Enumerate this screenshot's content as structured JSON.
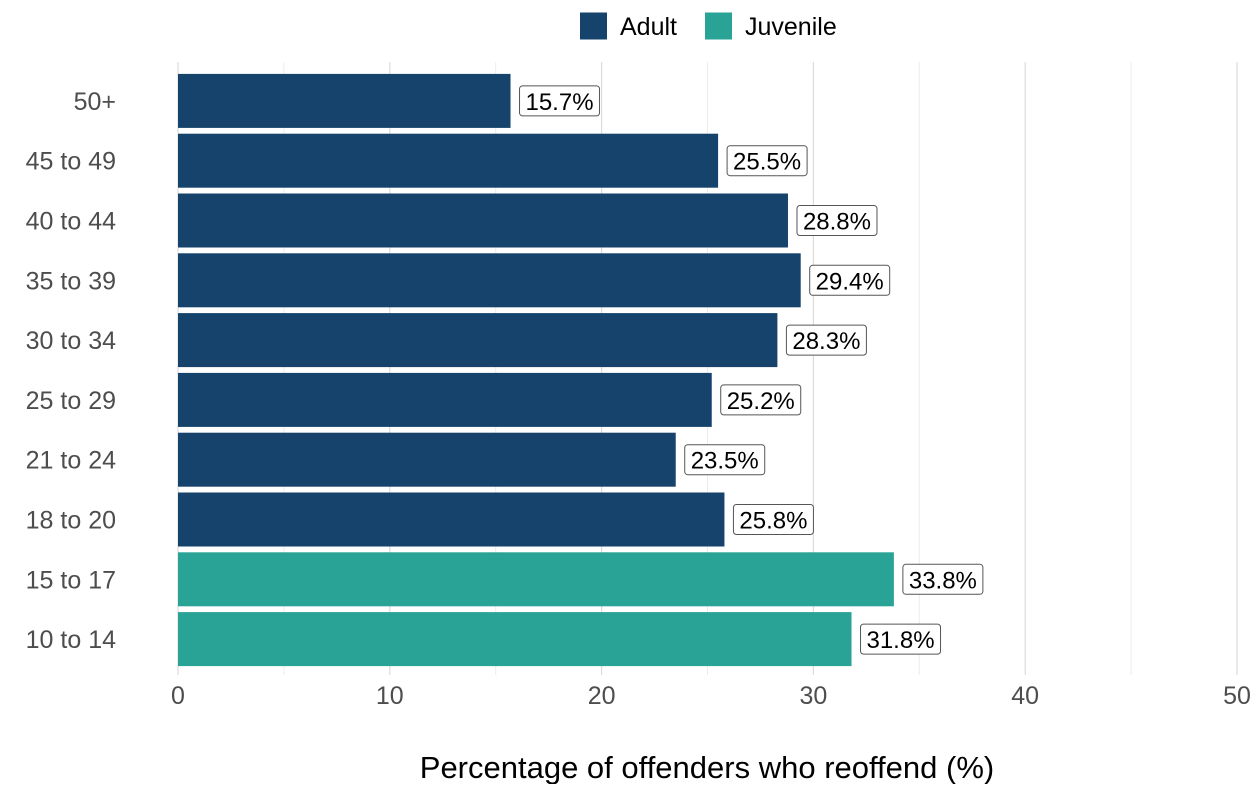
{
  "chart_data": {
    "type": "bar",
    "orientation": "horizontal",
    "title": "",
    "xlabel": "Percentage of offenders who reoffend (%)",
    "ylabel": "",
    "xlim": [
      0,
      50
    ],
    "x_ticks": [
      0,
      10,
      20,
      30,
      40,
      50
    ],
    "grid": "vertical",
    "legend_position": "top",
    "legend": [
      {
        "name": "Adult",
        "color": "#15436b"
      },
      {
        "name": "Juvenile",
        "color": "#2aa397"
      }
    ],
    "categories": [
      "50+",
      "45 to 49",
      "40 to 44",
      "35 to 39",
      "30 to 34",
      "25 to 29",
      "21 to 24",
      "18 to 20",
      "15 to 17",
      "10 to 14"
    ],
    "values": [
      15.7,
      25.5,
      28.8,
      29.4,
      28.3,
      25.2,
      23.5,
      25.8,
      33.8,
      31.8
    ],
    "groups": [
      "Adult",
      "Adult",
      "Adult",
      "Adult",
      "Adult",
      "Adult",
      "Adult",
      "Adult",
      "Juvenile",
      "Juvenile"
    ],
    "data_labels": [
      "15.7%",
      "25.5%",
      "28.8%",
      "29.4%",
      "28.3%",
      "25.2%",
      "23.5%",
      "25.8%",
      "33.8%",
      "31.8%"
    ]
  }
}
